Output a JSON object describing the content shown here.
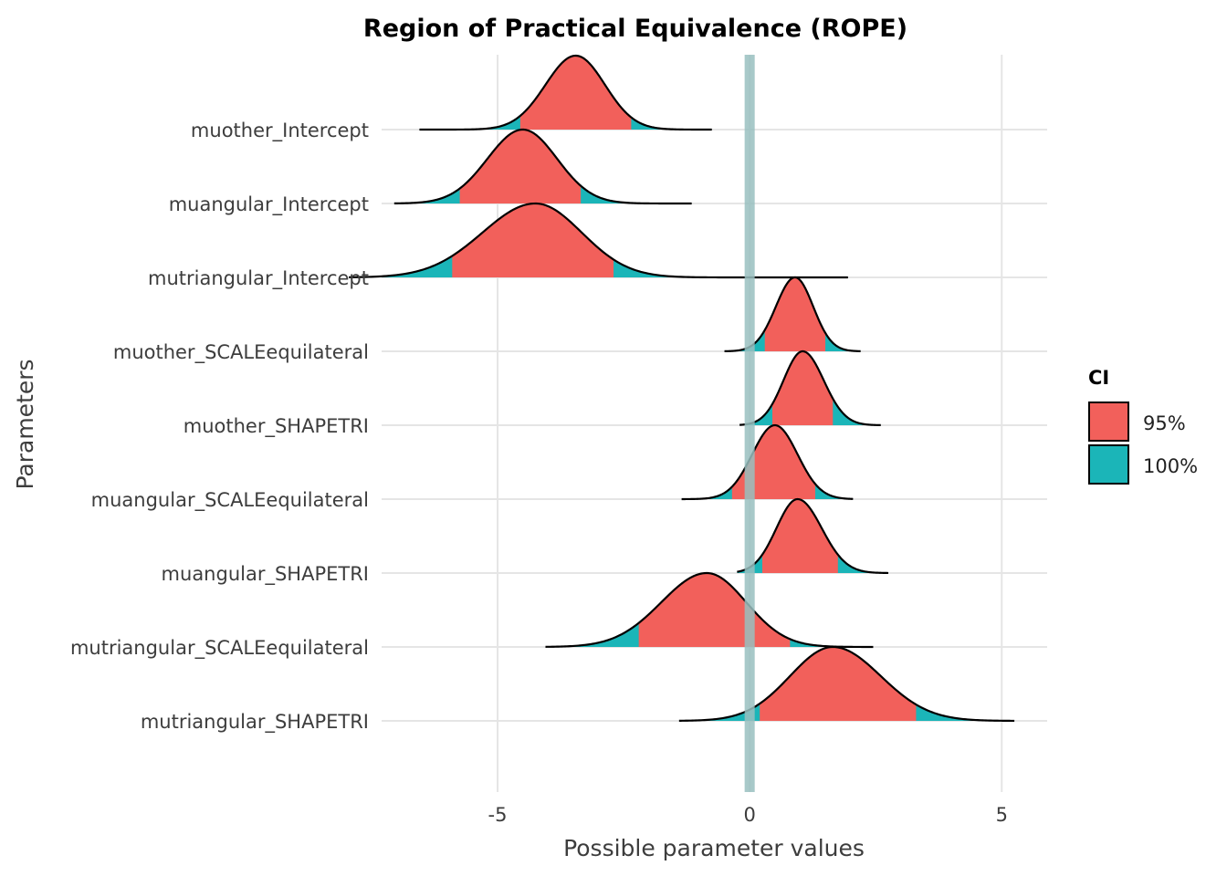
{
  "chart_data": {
    "type": "ridgeline",
    "title": "Region of Practical Equivalence (ROPE)",
    "xlabel": "Possible parameter values",
    "ylabel": "Parameters",
    "xlim": [
      -7.3,
      5.9
    ],
    "xticks": [
      -5,
      0,
      5
    ],
    "xtick_labels": [
      "-5",
      "0",
      "5"
    ],
    "grid": true,
    "rope": {
      "low": -0.1,
      "high": 0.1,
      "color": "#99bfc0"
    },
    "legend": {
      "title": "CI",
      "placement": "right",
      "items": [
        {
          "label": "95%",
          "color": "#f2605b"
        },
        {
          "label": "100%",
          "color": "#1bb5b8"
        }
      ]
    },
    "parameters": [
      {
        "name": "muother_Intercept",
        "mode": -3.45,
        "sd_left": 0.6,
        "sd_right": 0.58,
        "min": -6.55,
        "max": -0.75,
        "ci95": [
          -4.55,
          -2.35
        ]
      },
      {
        "name": "muangular_Intercept",
        "mode": -4.5,
        "sd_left": 0.7,
        "sd_right": 0.68,
        "min": -7.05,
        "max": -1.15,
        "ci95": [
          -5.75,
          -3.35
        ]
      },
      {
        "name": "mutriangular_Intercept",
        "mode": -4.25,
        "sd_left": 1.05,
        "sd_right": 0.92,
        "min": -7.95,
        "max": 1.95,
        "ci95": [
          -5.9,
          -2.7
        ]
      },
      {
        "name": "muother_SCALEequilateral",
        "mode": 0.9,
        "sd_left": 0.38,
        "sd_right": 0.36,
        "min": -0.5,
        "max": 2.2,
        "ci95": [
          0.3,
          1.5
        ]
      },
      {
        "name": "muother_SHAPETRI",
        "mode": 1.05,
        "sd_left": 0.38,
        "sd_right": 0.42,
        "min": -0.2,
        "max": 2.6,
        "ci95": [
          0.45,
          1.65
        ]
      },
      {
        "name": "muangular_SCALEequilateral",
        "mode": 0.5,
        "sd_left": 0.45,
        "sd_right": 0.45,
        "min": -1.35,
        "max": 2.05,
        "ci95": [
          -0.35,
          1.3
        ]
      },
      {
        "name": "muangular_SHAPETRI",
        "mode": 0.95,
        "sd_left": 0.42,
        "sd_right": 0.48,
        "min": -0.25,
        "max": 2.75,
        "ci95": [
          0.25,
          1.75
        ]
      },
      {
        "name": "mutriangular_SCALEequilateral",
        "mode": -0.85,
        "sd_left": 0.9,
        "sd_right": 0.78,
        "min": -4.05,
        "max": 2.45,
        "ci95": [
          -2.2,
          0.8
        ]
      },
      {
        "name": "mutriangular_SHAPETRI",
        "mode": 1.65,
        "sd_left": 0.85,
        "sd_right": 0.95,
        "min": -1.4,
        "max": 5.25,
        "ci95": [
          0.2,
          3.3
        ]
      }
    ]
  }
}
